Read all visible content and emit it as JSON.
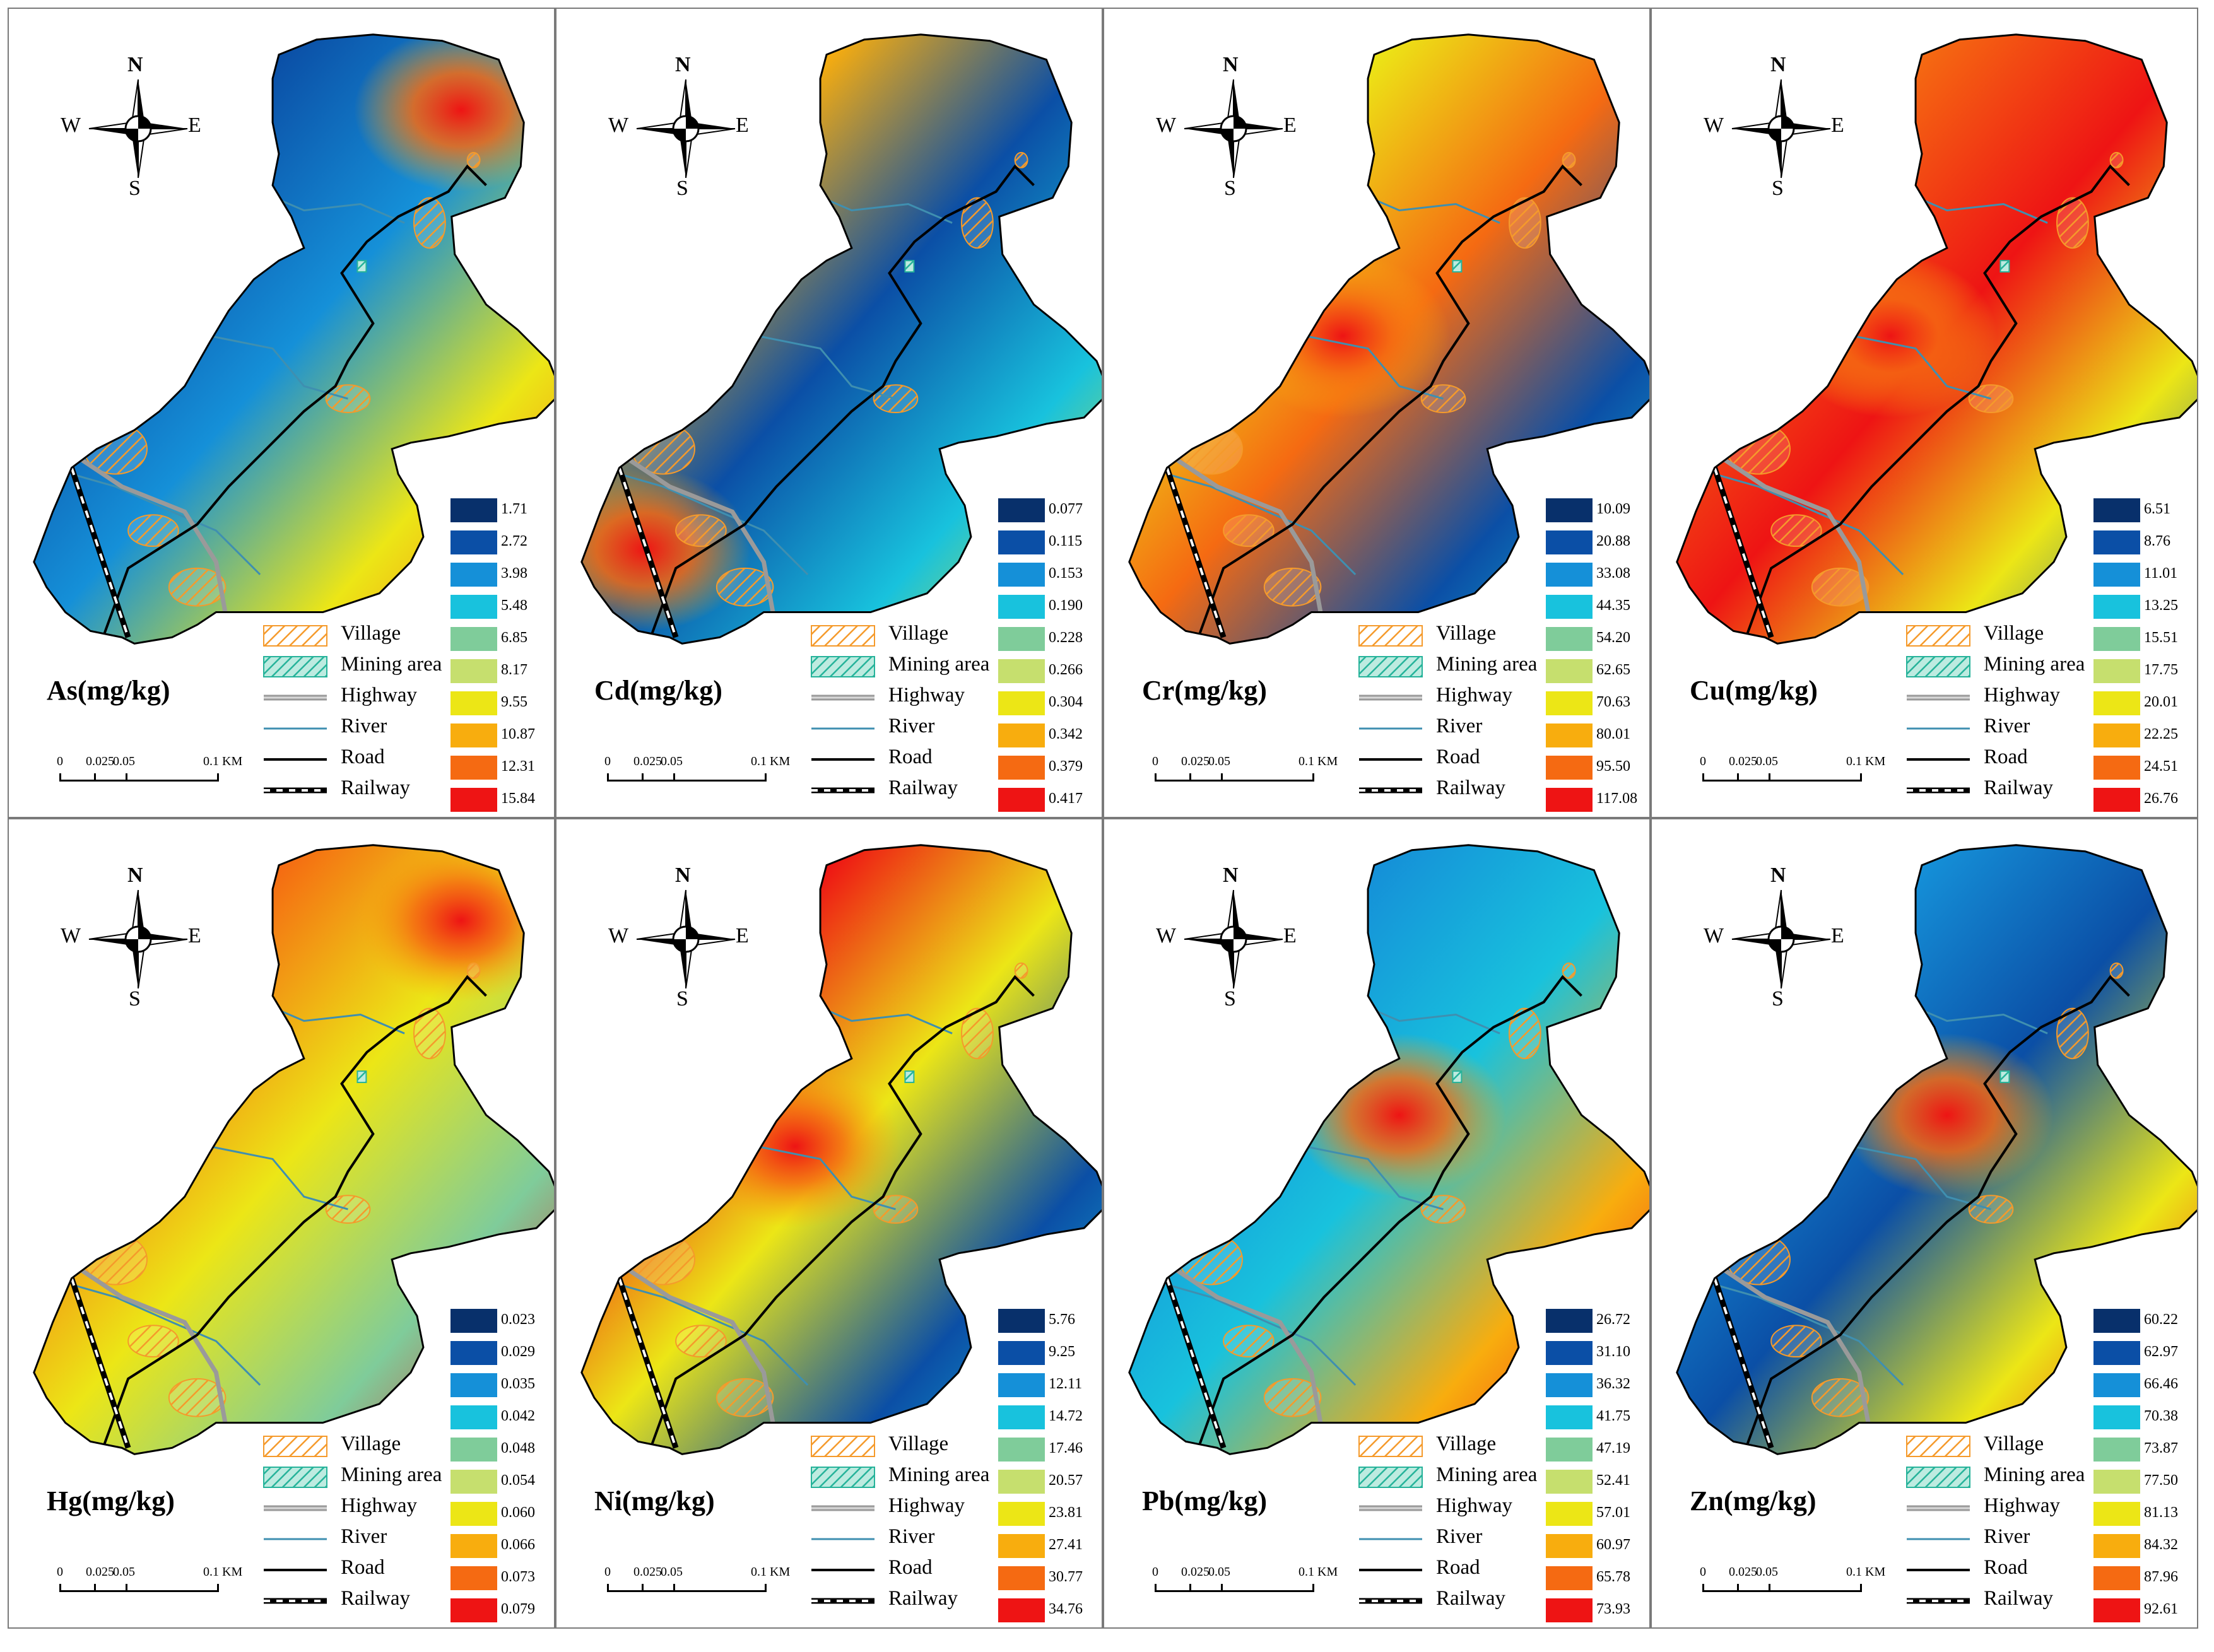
{
  "compass": {
    "n": "N",
    "s": "S",
    "w": "W",
    "e": "E"
  },
  "scale_bar": {
    "ticks": [
      "0",
      "0.025",
      "0.05",
      "0.1 KM"
    ]
  },
  "legend_items": [
    {
      "label": "Village",
      "key": "village"
    },
    {
      "label": "Mining area",
      "key": "mining"
    },
    {
      "label": "Highway",
      "key": "highway"
    },
    {
      "label": "River",
      "key": "river"
    },
    {
      "label": "Road",
      "key": "road"
    },
    {
      "label": "Railway",
      "key": "railway"
    }
  ],
  "class_colors": [
    "#08306b",
    "#0b4fa6",
    "#1590d8",
    "#18c2dd",
    "#7fcc9a",
    "#c6df6e",
    "#ece616",
    "#f8ad0e",
    "#f56a12",
    "#ee1414"
  ],
  "style_colors": {
    "village": "#f59a2b",
    "mining": "#26b39a",
    "highway": "#9a9a9a",
    "river": "#3f8fb0",
    "road": "#000000",
    "railway": "#000000",
    "boundary": "#000000"
  },
  "panels": [
    {
      "element": "As",
      "title": "As(mg/kg)",
      "breaks": [
        "1.71",
        "2.72",
        "3.98",
        "5.48",
        "6.85",
        "8.17",
        "9.55",
        "10.87",
        "12.31",
        "15.84"
      ],
      "hotspot": "north-east",
      "blend": [
        0,
        1,
        2,
        6,
        8
      ]
    },
    {
      "element": "Cd",
      "title": "Cd(mg/kg)",
      "breaks": [
        "0.077",
        "0.115",
        "0.153",
        "0.190",
        "0.228",
        "0.266",
        "0.304",
        "0.342",
        "0.379",
        "0.417"
      ],
      "hotspot": "south-west",
      "blend": [
        9,
        7,
        1,
        3,
        6
      ]
    },
    {
      "element": "Cr",
      "title": "Cr(mg/kg)",
      "breaks": [
        "10.09",
        "20.88",
        "33.08",
        "44.35",
        "54.20",
        "62.65",
        "70.63",
        "80.01",
        "95.50",
        "117.08"
      ],
      "hotspot": "centre-west",
      "blend": [
        5,
        6,
        8,
        1,
        3
      ]
    },
    {
      "element": "Cu",
      "title": "Cu(mg/kg)",
      "breaks": [
        "6.51",
        "8.76",
        "11.01",
        "13.25",
        "15.51",
        "17.75",
        "20.01",
        "22.25",
        "24.51",
        "26.76"
      ],
      "hotspot": "centre-west",
      "blend": [
        7,
        8,
        9,
        6,
        1
      ]
    },
    {
      "element": "Hg",
      "title": "Hg(mg/kg)",
      "breaks": [
        "0.023",
        "0.029",
        "0.035",
        "0.042",
        "0.048",
        "0.054",
        "0.060",
        "0.066",
        "0.073",
        "0.079"
      ],
      "hotspot": "north-east",
      "blend": [
        0,
        8,
        6,
        4,
        9
      ]
    },
    {
      "element": "Ni",
      "title": "Ni(mg/kg)",
      "breaks": [
        "5.76",
        "9.25",
        "12.11",
        "14.72",
        "17.46",
        "20.57",
        "23.81",
        "27.41",
        "30.77",
        "34.76"
      ],
      "hotspot": "centre-west",
      "blend": [
        7,
        9,
        6,
        1,
        3
      ]
    },
    {
      "element": "Pb",
      "title": "Pb(mg/kg)",
      "breaks": [
        "26.72",
        "31.10",
        "36.32",
        "41.75",
        "47.19",
        "52.41",
        "57.01",
        "60.97",
        "65.78",
        "73.93"
      ],
      "hotspot": "centre",
      "blend": [
        1,
        2,
        3,
        7,
        9
      ]
    },
    {
      "element": "Zn",
      "title": "Zn(mg/kg)",
      "breaks": [
        "60.22",
        "62.97",
        "66.46",
        "70.38",
        "73.87",
        "77.50",
        "81.13",
        "84.32",
        "87.96",
        "92.61"
      ],
      "hotspot": "centre",
      "blend": [
        3,
        2,
        1,
        6,
        9
      ]
    }
  ]
}
